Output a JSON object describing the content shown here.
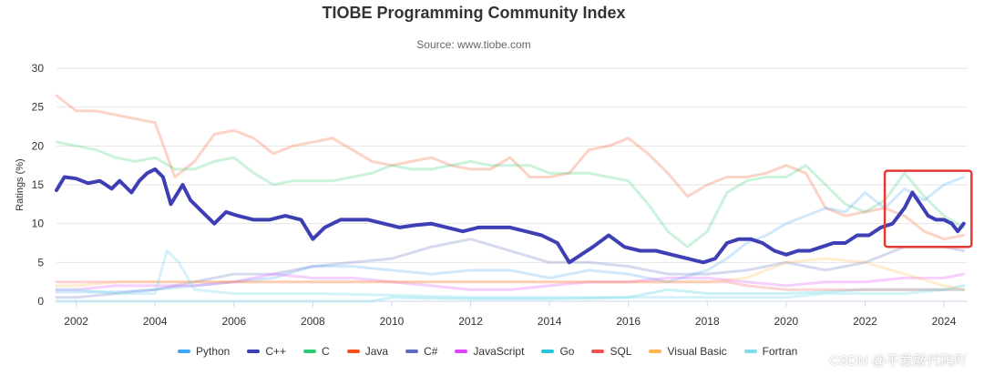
{
  "chart_data": {
    "type": "line",
    "title": "TIOBE Programming Community Index",
    "subtitle": "Source: www.tiobe.com",
    "ylabel": "Ratings (%)",
    "xlabel": "",
    "ylim": [
      0,
      30
    ],
    "xlim": [
      2001.5,
      2024.6
    ],
    "yticks": [
      "0",
      "5",
      "10",
      "15",
      "20",
      "25",
      "30"
    ],
    "xticks": [
      "2002",
      "2004",
      "2006",
      "2008",
      "2010",
      "2012",
      "2014",
      "2016",
      "2018",
      "2020",
      "2022",
      "2024"
    ],
    "grid": true,
    "legend_position": "bottom",
    "highlight": {
      "x_range": [
        2022.5,
        2024.7
      ],
      "y_range": [
        7,
        16.8
      ],
      "color": "#e53935"
    },
    "series": [
      {
        "name": "Java",
        "color": "#f4511e",
        "opacity": 0.25,
        "width": 3,
        "x": [
          2001.5,
          2002,
          2002.5,
          2003,
          2003.5,
          2004,
          2004.5,
          2005,
          2005.5,
          2006,
          2006.5,
          2007,
          2007.5,
          2008,
          2008.5,
          2009,
          2009.5,
          2010,
          2010.5,
          2011,
          2011.5,
          2012,
          2012.5,
          2013,
          2013.5,
          2014,
          2014.5,
          2015,
          2015.5,
          2016,
          2016.5,
          2017,
          2017.5,
          2018,
          2018.5,
          2019,
          2019.5,
          2020,
          2020.5,
          2021,
          2021.5,
          2022,
          2022.5,
          2023,
          2023.5,
          2024,
          2024.5
        ],
        "y": [
          26.5,
          24.5,
          24.5,
          24,
          23.5,
          23,
          16,
          18,
          21.5,
          22,
          21,
          19,
          20,
          20.5,
          21,
          19.5,
          18,
          17.5,
          18,
          18.5,
          17.5,
          17,
          17,
          18.5,
          16,
          16,
          16.5,
          19.5,
          20,
          21,
          19,
          16.5,
          13.5,
          15,
          16,
          16,
          16.5,
          17.5,
          16.5,
          12,
          11,
          11.5,
          12,
          11,
          9,
          8,
          8.5
        ]
      },
      {
        "name": "C",
        "color": "#2ecc71",
        "opacity": 0.25,
        "width": 3,
        "x": [
          2001.5,
          2002,
          2002.5,
          2003,
          2003.5,
          2004,
          2004.5,
          2005,
          2005.5,
          2006,
          2006.5,
          2007,
          2007.5,
          2008,
          2008.5,
          2009,
          2009.5,
          2010,
          2010.5,
          2011,
          2011.5,
          2012,
          2012.5,
          2013,
          2013.5,
          2014,
          2014.5,
          2015,
          2015.5,
          2016,
          2016.5,
          2017,
          2017.5,
          2018,
          2018.5,
          2019,
          2019.5,
          2020,
          2020.5,
          2021,
          2021.5,
          2022,
          2022.5,
          2023,
          2023.5,
          2024,
          2024.5
        ],
        "y": [
          20.5,
          20,
          19.5,
          18.5,
          18,
          18.5,
          17,
          17,
          18,
          18.5,
          16.5,
          15,
          15.5,
          15.5,
          15.5,
          16,
          16.5,
          17.5,
          17,
          17,
          17.5,
          18,
          17.5,
          17.5,
          17.5,
          16.5,
          16.5,
          16.5,
          16,
          15.5,
          12.5,
          9,
          7,
          9,
          14,
          15.5,
          16,
          16,
          17.5,
          15,
          12.5,
          11.5,
          13,
          16.5,
          13.5,
          11,
          9.5
        ]
      },
      {
        "name": "Python",
        "color": "#42a5f5",
        "opacity": 0.25,
        "width": 3,
        "x": [
          2001.5,
          2002,
          2003,
          2004,
          2005,
          2006,
          2007,
          2008,
          2009,
          2010,
          2011,
          2012,
          2013,
          2014,
          2015,
          2016,
          2017,
          2018,
          2018.5,
          2019,
          2019.5,
          2020,
          2020.5,
          2021,
          2021.5,
          2022,
          2022.5,
          2023,
          2023.5,
          2024,
          2024.5
        ],
        "y": [
          1.2,
          1.2,
          1.2,
          1.5,
          2,
          2.5,
          3,
          4.5,
          4.5,
          4,
          3.5,
          4,
          4,
          3,
          4,
          3.5,
          2.5,
          4,
          5.5,
          7.5,
          8.5,
          10,
          11,
          12,
          11.5,
          14,
          12,
          14.5,
          13,
          15,
          16
        ]
      },
      {
        "name": "C#",
        "color": "#5c6bc0",
        "opacity": 0.25,
        "width": 3,
        "x": [
          2001.5,
          2002,
          2003,
          2004,
          2005,
          2006,
          2007,
          2008,
          2009,
          2010,
          2011,
          2012,
          2013,
          2014,
          2015,
          2016,
          2017,
          2018,
          2019,
          2020,
          2021,
          2022,
          2022.5,
          2023,
          2023.5,
          2024,
          2024.5
        ],
        "y": [
          0.5,
          0.5,
          1,
          1.5,
          2.5,
          3.5,
          3.5,
          4.5,
          5,
          5.5,
          7,
          8,
          6.5,
          5,
          5,
          4.5,
          3.5,
          3.5,
          4,
          5,
          4,
          5,
          6,
          7,
          7,
          7,
          6.5
        ]
      },
      {
        "name": "JavaScript",
        "color": "#e040fb",
        "opacity": 0.25,
        "width": 3,
        "x": [
          2001.5,
          2002,
          2003,
          2004,
          2005,
          2006,
          2007,
          2008,
          2009,
          2010,
          2011,
          2012,
          2013,
          2014,
          2015,
          2016,
          2017,
          2018,
          2019,
          2020,
          2021,
          2022,
          2023,
          2024,
          2024.5
        ],
        "y": [
          1.5,
          1.5,
          2,
          2,
          2,
          2.5,
          3.5,
          3,
          3,
          2.5,
          2,
          1.5,
          1.5,
          2,
          2.5,
          2.5,
          3,
          3,
          2.5,
          2,
          2.5,
          2.5,
          3,
          3,
          3.5
        ]
      },
      {
        "name": "Go",
        "color": "#26c6da",
        "opacity": 0.25,
        "width": 3,
        "x": [
          2001.5,
          2009.5,
          2010,
          2012,
          2014,
          2016,
          2017,
          2018,
          2019,
          2020,
          2021,
          2022,
          2023,
          2024,
          2024.5
        ],
        "y": [
          0,
          0,
          0.5,
          0.3,
          0.3,
          0.5,
          1.5,
          1,
          1,
          1,
          1.2,
          1.5,
          1.5,
          1.5,
          2
        ]
      },
      {
        "name": "SQL",
        "color": "#ef5350",
        "opacity": 0.25,
        "width": 3,
        "x": [
          2001.5,
          2018,
          2018.5,
          2019,
          2020,
          2021,
          2022,
          2023,
          2024,
          2024.5
        ],
        "y": [
          2.5,
          2.5,
          2.5,
          2,
          1.5,
          1.5,
          1.5,
          1.5,
          1.5,
          1.5
        ]
      },
      {
        "name": "Visual Basic",
        "color": "#ffb74d",
        "opacity": 0.25,
        "width": 3,
        "x": [
          2001.5,
          2002,
          2003,
          2004,
          2005,
          2006,
          2008,
          2010,
          2012,
          2014,
          2016,
          2018,
          2019,
          2020,
          2021,
          2022,
          2023,
          2024,
          2024.5
        ],
        "y": [
          2,
          2,
          2.5,
          2.5,
          2.5,
          2.5,
          2.5,
          2.5,
          2.5,
          2.5,
          2.5,
          2.5,
          3,
          5,
          5.5,
          5,
          3.5,
          2,
          1.5
        ]
      },
      {
        "name": "Fortran",
        "color": "#80deea",
        "opacity": 0.35,
        "width": 3,
        "x": [
          2001.5,
          2002,
          2003,
          2004,
          2004.3,
          2004.6,
          2005,
          2006,
          2008,
          2010,
          2012,
          2014,
          2016,
          2018,
          2020,
          2021,
          2022,
          2023,
          2024,
          2024.5
        ],
        "y": [
          1.5,
          1.5,
          1,
          1,
          6.5,
          5,
          1.5,
          1,
          1,
          0.8,
          0.5,
          0.5,
          0.5,
          0.5,
          0.5,
          1,
          1,
          1,
          1.5,
          1.5
        ]
      },
      {
        "name": "C++",
        "color": "#3f3fb5",
        "opacity": 1,
        "width": 4,
        "x": [
          2001.5,
          2001.7,
          2002,
          2002.3,
          2002.6,
          2002.9,
          2003.1,
          2003.4,
          2003.6,
          2003.8,
          2004,
          2004.2,
          2004.4,
          2004.7,
          2004.9,
          2005.2,
          2005.5,
          2005.8,
          2006.1,
          2006.5,
          2006.9,
          2007.3,
          2007.7,
          2008,
          2008.3,
          2008.7,
          2009,
          2009.4,
          2009.8,
          2010.2,
          2010.6,
          2011,
          2011.4,
          2011.8,
          2012.2,
          2012.6,
          2013,
          2013.4,
          2013.8,
          2014.2,
          2014.5,
          2014.8,
          2015.1,
          2015.5,
          2015.9,
          2016.3,
          2016.7,
          2017.1,
          2017.5,
          2017.9,
          2018.2,
          2018.5,
          2018.8,
          2019.1,
          2019.4,
          2019.7,
          2020,
          2020.3,
          2020.6,
          2020.9,
          2021.2,
          2021.5,
          2021.8,
          2022.1,
          2022.4,
          2022.7,
          2023,
          2023.2,
          2023.4,
          2023.6,
          2023.8,
          2024,
          2024.2,
          2024.35,
          2024.5
        ],
        "y": [
          14.3,
          16,
          15.8,
          15.2,
          15.5,
          14.5,
          15.5,
          14,
          15.5,
          16.5,
          17,
          16,
          12.5,
          15,
          13,
          11.5,
          10,
          11.5,
          11,
          10.5,
          10.5,
          11,
          10.5,
          8,
          9.5,
          10.5,
          10.5,
          10.5,
          10,
          9.5,
          9.8,
          10,
          9.5,
          9,
          9.5,
          9.5,
          9.5,
          9,
          8.5,
          7.5,
          5,
          6,
          7,
          8.5,
          7,
          6.5,
          6.5,
          6,
          5.5,
          5,
          5.5,
          7.5,
          8,
          8,
          7.5,
          6.5,
          6,
          6.5,
          6.5,
          7,
          7.5,
          7.5,
          8.5,
          8.5,
          9.5,
          10,
          12,
          14,
          12.5,
          11,
          10.5,
          10.5,
          10,
          9,
          10
        ]
      }
    ],
    "legend": [
      {
        "name": "Python",
        "color": "#42a5f5"
      },
      {
        "name": "C++",
        "color": "#3f3fb5"
      },
      {
        "name": "C",
        "color": "#2ecc71"
      },
      {
        "name": "Java",
        "color": "#f4511e"
      },
      {
        "name": "C#",
        "color": "#5c6bc0"
      },
      {
        "name": "JavaScript",
        "color": "#e040fb"
      },
      {
        "name": "Go",
        "color": "#26c6da"
      },
      {
        "name": "SQL",
        "color": "#ef5350"
      },
      {
        "name": "Visual Basic",
        "color": "#ffb74d"
      },
      {
        "name": "Fortran",
        "color": "#80deea"
      }
    ]
  },
  "watermark": "CSDN @不爱敲代码吖"
}
